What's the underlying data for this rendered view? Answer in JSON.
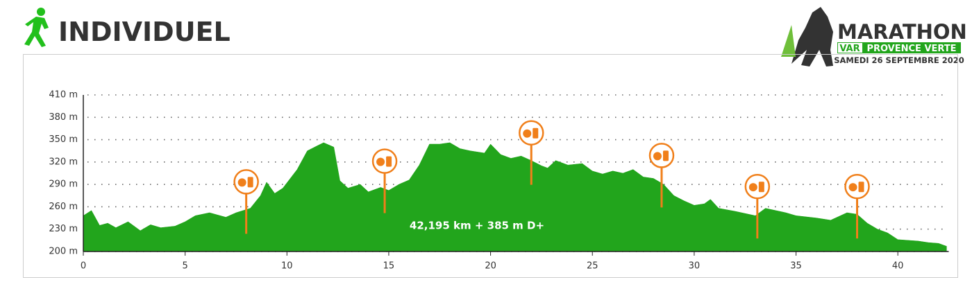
{
  "chart_data": {
    "type": "area",
    "title": "INDIVIDUEL",
    "annotation": "42,195 km + 385 m D+",
    "color": "#22a51c",
    "marker_color": "#f07f1a",
    "x": [
      0,
      0.4,
      0.8,
      1.2,
      1.6,
      2.2,
      2.8,
      3.3,
      3.8,
      4.5,
      5,
      5.5,
      6.2,
      7,
      7.5,
      8.2,
      8.7,
      9,
      9.4,
      9.8,
      10.5,
      11,
      11.5,
      11.8,
      12.3,
      12.6,
      13,
      13.6,
      14,
      14.6,
      15,
      15.5,
      16,
      16.5,
      17,
      17.5,
      18,
      18.5,
      19,
      19.7,
      20,
      20.5,
      21,
      21.5,
      22,
      22.5,
      22.8,
      23.2,
      23.8,
      24.5,
      25,
      25.5,
      26,
      26.5,
      27,
      27.5,
      28,
      28.5,
      29,
      29.5,
      30,
      30.5,
      30.8,
      31.2,
      32,
      33,
      33.5,
      34,
      34.5,
      35,
      36,
      36.7,
      37.5,
      38,
      38.5,
      39,
      39.5,
      40,
      41,
      41.5,
      42,
      42.4
    ],
    "values": [
      248,
      255,
      235,
      238,
      232,
      240,
      228,
      236,
      232,
      234,
      240,
      248,
      252,
      246,
      252,
      258,
      275,
      293,
      278,
      285,
      310,
      335,
      342,
      346,
      340,
      295,
      285,
      290,
      280,
      286,
      282,
      290,
      296,
      316,
      344,
      344,
      346,
      338,
      335,
      332,
      344,
      330,
      325,
      328,
      322,
      315,
      312,
      322,
      316,
      318,
      308,
      304,
      308,
      305,
      310,
      300,
      298,
      290,
      275,
      268,
      262,
      264,
      270,
      258,
      254,
      248,
      258,
      255,
      252,
      248,
      245,
      242,
      252,
      250,
      238,
      230,
      225,
      216,
      214,
      212,
      211,
      207
    ],
    "markers_x": [
      8,
      14.8,
      22,
      28.4,
      33.1,
      38
    ],
    "xlim": [
      0,
      42.5
    ],
    "ylim": [
      200,
      410
    ],
    "xticks": [
      0,
      5,
      10,
      15,
      20,
      25,
      30,
      35,
      40
    ],
    "yticks": [
      {
        "value": 200,
        "label": "200 m"
      },
      {
        "value": 230,
        "label": "230 m"
      },
      {
        "value": 260,
        "label": "260 m"
      },
      {
        "value": 290,
        "label": "290 m"
      },
      {
        "value": 320,
        "label": "320 m"
      },
      {
        "value": 350,
        "label": "350 m"
      },
      {
        "value": 380,
        "label": "380 m"
      },
      {
        "value": 410,
        "label": "410 m"
      }
    ],
    "grid": true
  },
  "logo": {
    "name": "MARATHON",
    "region": "VAR",
    "subtitle": "PROVENCE VERTE",
    "date": "SAMEDI 26 SEPTEMBRE 2020"
  }
}
